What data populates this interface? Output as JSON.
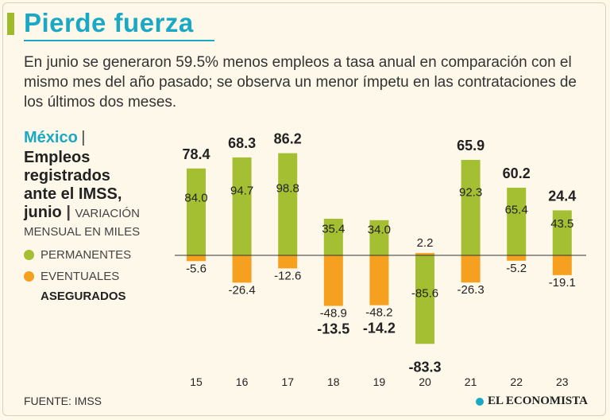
{
  "header": {
    "title": "Pierde fuerza",
    "subtitle": "En junio se generaron 59.5% menos empleos a tasa anual en comparación con el mismo mes del año pasado; se observa un menor ímpetu en las contrataciones de los últimos dos meses."
  },
  "side": {
    "country": "México",
    "separator": "|",
    "heading_lines": [
      "Empleos",
      "registrados",
      "ante el IMSS,",
      "junio"
    ],
    "unit_line1": "VARIACIÓN",
    "unit_line2": "MENSUAL EN MILES"
  },
  "colors": {
    "permanentes": "#a5bf33",
    "eventuales": "#f5a01f",
    "title": "#1aa9c4"
  },
  "chart_data": {
    "type": "bar",
    "stacking": "diverging",
    "categories": [
      "15",
      "16",
      "17",
      "18",
      "19",
      "20",
      "21",
      "22",
      "23"
    ],
    "series": [
      {
        "name": "PERMANENTES",
        "values": [
          84.0,
          94.7,
          98.8,
          35.4,
          34.0,
          -85.6,
          92.3,
          65.4,
          43.5
        ]
      },
      {
        "name": "EVENTUALES",
        "values": [
          -5.6,
          -26.4,
          -12.6,
          -48.9,
          -48.2,
          2.2,
          -26.3,
          -5.2,
          -19.1
        ]
      }
    ],
    "value_labels": {
      "permanentes": [
        "84.0",
        "94.7",
        "98.8",
        "35.4",
        "34.0",
        "-85.6",
        "92.3",
        "65.4",
        "43.5"
      ],
      "eventuales": [
        "-5.6",
        "-26.4",
        "-12.6",
        "-48.9",
        "-48.2",
        "2.2",
        "-26.3",
        "-5.2",
        "-19.1"
      ]
    },
    "total_name": "ASEGURADOS",
    "totals": [
      78.4,
      68.3,
      86.2,
      -13.5,
      -14.2,
      -83.3,
      65.9,
      60.2,
      24.4
    ],
    "total_labels": [
      "78.4",
      "68.3",
      "86.2",
      "-13.5",
      "-14.2",
      "-83.3",
      "65.9",
      "60.2",
      "24.4"
    ],
    "ylim": [
      -88,
      100
    ],
    "grid": false
  },
  "footer": {
    "source": "FUENTE: IMSS",
    "brand": "EL ECONOMISTA"
  }
}
